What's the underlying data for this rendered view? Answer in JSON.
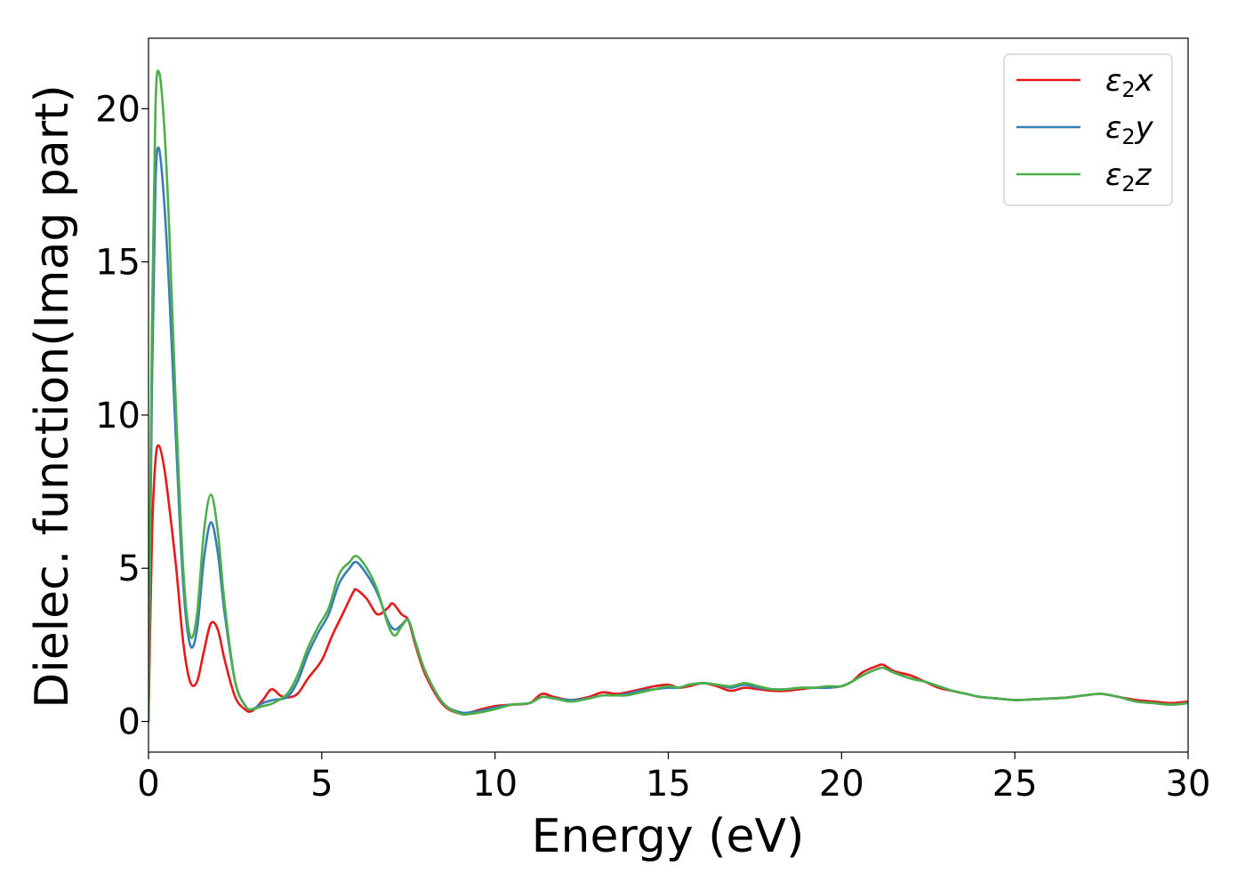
{
  "chart_data": {
    "type": "line",
    "title": "",
    "xlabel": "Energy (eV)",
    "ylabel": "Dielec. function(Imag part)",
    "xlim": [
      0,
      30
    ],
    "ylim": [
      -1,
      22.3
    ],
    "xticks": [
      0,
      5,
      10,
      15,
      20,
      25,
      30
    ],
    "yticks": [
      0,
      5,
      10,
      15,
      20
    ],
    "grid": false,
    "legend_position": "top-right",
    "series": [
      {
        "name": "ε2x",
        "label_base": "ε",
        "label_sub": "2",
        "label_axis": "x",
        "color": "#e41a1c",
        "x": [
          0,
          0.1,
          0.2,
          0.3,
          0.45,
          0.6,
          0.8,
          1.0,
          1.2,
          1.4,
          1.6,
          1.8,
          2.0,
          2.2,
          2.5,
          2.8,
          3.0,
          3.3,
          3.55,
          3.8,
          4.0,
          4.3,
          4.6,
          5.0,
          5.3,
          5.6,
          5.9,
          6.0,
          6.3,
          6.6,
          6.9,
          7.05,
          7.3,
          7.5,
          7.7,
          8.0,
          8.5,
          9.0,
          9.3,
          9.6,
          10.0,
          10.5,
          11.0,
          11.35,
          11.7,
          12.2,
          12.7,
          13.1,
          13.5,
          13.8,
          14.2,
          14.6,
          15.0,
          15.3,
          15.6,
          16.0,
          16.4,
          16.8,
          17.2,
          17.6,
          18.0,
          18.4,
          18.8,
          19.2,
          19.6,
          20.0,
          20.3,
          20.6,
          21.0,
          21.2,
          21.5,
          22.0,
          22.4,
          22.8,
          23.2,
          23.6,
          24.0,
          24.5,
          25.0,
          25.5,
          26.0,
          26.5,
          27.0,
          27.5,
          28.0,
          28.5,
          29.0,
          29.5,
          30.0
        ],
        "y": [
          0.0,
          6.0,
          8.5,
          9.0,
          8.3,
          7.0,
          5.0,
          2.6,
          1.3,
          1.3,
          2.3,
          3.2,
          3.0,
          2.0,
          0.8,
          0.38,
          0.35,
          0.7,
          1.05,
          0.85,
          0.78,
          0.9,
          1.4,
          2.0,
          2.8,
          3.5,
          4.2,
          4.3,
          4.0,
          3.5,
          3.7,
          3.85,
          3.5,
          3.3,
          2.5,
          1.5,
          0.55,
          0.25,
          0.3,
          0.4,
          0.5,
          0.55,
          0.6,
          0.9,
          0.8,
          0.7,
          0.8,
          0.95,
          0.9,
          0.95,
          1.05,
          1.15,
          1.2,
          1.1,
          1.15,
          1.25,
          1.15,
          1.0,
          1.1,
          1.05,
          1.0,
          1.0,
          1.05,
          1.1,
          1.1,
          1.15,
          1.3,
          1.6,
          1.8,
          1.85,
          1.65,
          1.5,
          1.3,
          1.1,
          1.0,
          0.9,
          0.8,
          0.75,
          0.7,
          0.72,
          0.75,
          0.78,
          0.85,
          0.9,
          0.8,
          0.7,
          0.65,
          0.6,
          0.65
        ]
      },
      {
        "name": "ε2y",
        "label_base": "ε",
        "label_sub": "2",
        "label_axis": "y",
        "color": "#377eb8",
        "x": [
          0,
          0.1,
          0.2,
          0.3,
          0.45,
          0.6,
          0.8,
          1.0,
          1.2,
          1.4,
          1.6,
          1.8,
          2.0,
          2.2,
          2.5,
          2.8,
          3.0,
          3.3,
          3.6,
          4.0,
          4.3,
          4.6,
          4.9,
          5.2,
          5.5,
          5.8,
          6.0,
          6.3,
          6.6,
          6.9,
          7.1,
          7.3,
          7.5,
          7.7,
          8.0,
          8.5,
          9.0,
          9.3,
          9.6,
          10.0,
          10.5,
          11.0,
          11.35,
          11.7,
          12.2,
          12.7,
          13.1,
          13.5,
          13.8,
          14.2,
          14.6,
          15.0,
          15.3,
          15.6,
          16.0,
          16.4,
          16.8,
          17.2,
          17.6,
          18.0,
          18.4,
          18.8,
          19.2,
          19.6,
          20.0,
          20.3,
          20.6,
          21.0,
          21.2,
          21.5,
          22.0,
          22.4,
          22.8,
          23.2,
          23.6,
          24.0,
          24.5,
          25.0,
          25.5,
          26.0,
          26.5,
          27.0,
          27.5,
          28.0,
          28.5,
          29.0,
          29.5,
          30.0
        ],
        "y": [
          0.0,
          11.0,
          17.5,
          18.7,
          17.0,
          14.0,
          9.0,
          4.5,
          2.5,
          3.0,
          5.3,
          6.5,
          5.5,
          3.5,
          1.3,
          0.5,
          0.4,
          0.6,
          0.7,
          0.8,
          1.3,
          2.2,
          2.9,
          3.5,
          4.5,
          5.0,
          5.2,
          4.8,
          4.2,
          3.3,
          3.0,
          3.15,
          3.3,
          2.6,
          1.6,
          0.6,
          0.3,
          0.3,
          0.35,
          0.45,
          0.55,
          0.6,
          0.8,
          0.75,
          0.7,
          0.75,
          0.85,
          0.85,
          0.9,
          1.0,
          1.05,
          1.1,
          1.1,
          1.2,
          1.25,
          1.2,
          1.1,
          1.2,
          1.1,
          1.05,
          1.05,
          1.1,
          1.1,
          1.1,
          1.15,
          1.3,
          1.5,
          1.7,
          1.75,
          1.6,
          1.4,
          1.3,
          1.15,
          1.0,
          0.9,
          0.8,
          0.75,
          0.7,
          0.72,
          0.75,
          0.78,
          0.85,
          0.9,
          0.8,
          0.65,
          0.6,
          0.55,
          0.6
        ]
      },
      {
        "name": "ε2z",
        "label_base": "ε",
        "label_sub": "2",
        "label_axis": "z",
        "color": "#4daf4a",
        "x": [
          0,
          0.1,
          0.2,
          0.3,
          0.45,
          0.6,
          0.8,
          1.0,
          1.2,
          1.4,
          1.6,
          1.8,
          2.0,
          2.2,
          2.5,
          2.8,
          3.0,
          3.3,
          3.6,
          4.0,
          4.3,
          4.6,
          4.9,
          5.2,
          5.5,
          5.8,
          6.0,
          6.3,
          6.6,
          6.9,
          7.1,
          7.3,
          7.5,
          7.7,
          8.0,
          8.5,
          9.0,
          9.3,
          9.6,
          10.0,
          10.5,
          11.0,
          11.35,
          11.7,
          12.2,
          12.7,
          13.1,
          13.5,
          13.8,
          14.2,
          14.6,
          15.0,
          15.3,
          15.6,
          16.0,
          16.4,
          16.8,
          17.2,
          17.6,
          18.0,
          18.4,
          18.8,
          19.2,
          19.6,
          20.0,
          20.3,
          20.6,
          21.0,
          21.2,
          21.5,
          22.0,
          22.4,
          22.8,
          23.2,
          23.6,
          24.0,
          24.5,
          25.0,
          25.5,
          26.0,
          26.5,
          27.0,
          27.5,
          28.0,
          28.5,
          29.0,
          29.5,
          30.0
        ],
        "y": [
          0.0,
          13.0,
          20.0,
          21.2,
          19.5,
          16.0,
          10.0,
          5.0,
          2.8,
          3.5,
          6.2,
          7.4,
          6.2,
          3.8,
          1.3,
          0.5,
          0.4,
          0.5,
          0.6,
          0.9,
          1.5,
          2.4,
          3.1,
          3.7,
          4.8,
          5.2,
          5.4,
          5.0,
          4.3,
          3.2,
          2.8,
          3.1,
          3.3,
          2.6,
          1.6,
          0.6,
          0.25,
          0.25,
          0.3,
          0.4,
          0.55,
          0.6,
          0.8,
          0.75,
          0.65,
          0.75,
          0.85,
          0.85,
          0.85,
          0.95,
          1.05,
          1.15,
          1.1,
          1.2,
          1.25,
          1.2,
          1.15,
          1.25,
          1.15,
          1.05,
          1.05,
          1.1,
          1.1,
          1.15,
          1.15,
          1.3,
          1.5,
          1.7,
          1.75,
          1.6,
          1.4,
          1.3,
          1.15,
          1.0,
          0.9,
          0.8,
          0.75,
          0.7,
          0.72,
          0.75,
          0.78,
          0.85,
          0.9,
          0.8,
          0.65,
          0.6,
          0.55,
          0.6
        ]
      }
    ]
  }
}
